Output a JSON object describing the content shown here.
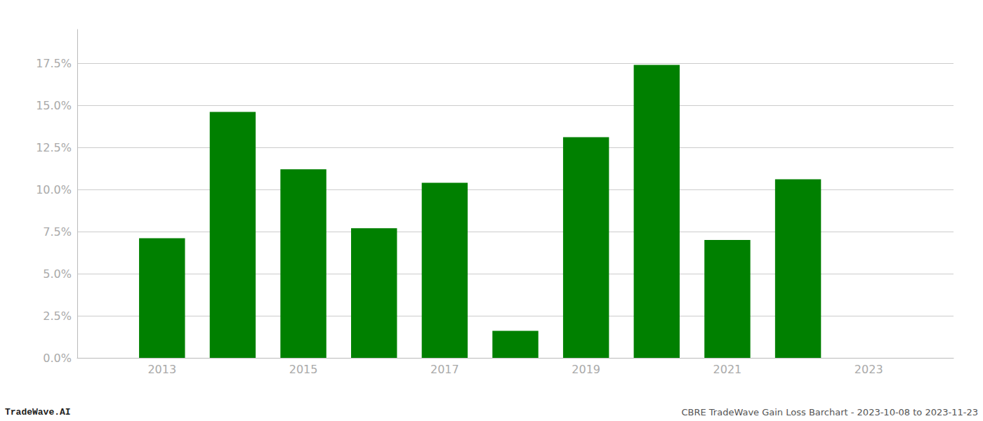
{
  "chart_data": {
    "type": "bar",
    "x": [
      2013,
      2014,
      2015,
      2016,
      2017,
      2018,
      2019,
      2020,
      2021,
      2022
    ],
    "values": [
      0.071,
      0.146,
      0.112,
      0.077,
      0.104,
      0.016,
      0.131,
      0.174,
      0.07,
      0.106
    ],
    "color": "#008000",
    "xlim": [
      2011.8,
      2024.2
    ],
    "xticks": [
      2013,
      2015,
      2017,
      2019,
      2021,
      2023
    ],
    "ylim": [
      0,
      0.195
    ],
    "yticks": [
      {
        "value": 0.0,
        "label": "0.0%"
      },
      {
        "value": 0.025,
        "label": "2.5%"
      },
      {
        "value": 0.05,
        "label": "5.0%"
      },
      {
        "value": 0.075,
        "label": "7.5%"
      },
      {
        "value": 0.1,
        "label": "10.0%"
      },
      {
        "value": 0.125,
        "label": "12.5%"
      },
      {
        "value": 0.15,
        "label": "15.0%"
      },
      {
        "value": 0.175,
        "label": "17.5%"
      }
    ],
    "grid": true,
    "annotations": [
      "TradeWave.AI",
      "CBRE TradeWave Gain Loss Barchart - 2023-10-08 to 2023-11-23"
    ]
  }
}
